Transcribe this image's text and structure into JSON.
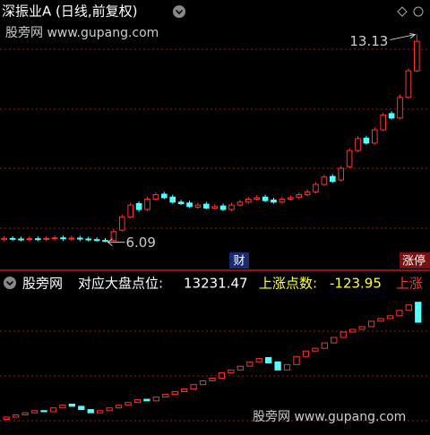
{
  "chart_data": [
    {
      "type": "candlestick",
      "title": "深振业A (日线,前复权)",
      "up_color": "#ff3232",
      "down_color": "#54ffff",
      "ylim": [
        5.2,
        14.3
      ],
      "open": [
        6.18,
        6.22,
        6.2,
        6.18,
        6.21,
        6.19,
        6.22,
        6.24,
        6.21,
        6.23,
        6.2,
        6.18,
        6.15,
        6.15,
        6.5,
        6.95,
        7.4,
        7.2,
        7.55,
        7.72,
        7.62,
        7.45,
        7.42,
        7.28,
        7.38,
        7.25,
        7.32,
        7.2,
        7.35,
        7.45,
        7.55,
        7.62,
        7.52,
        7.45,
        7.55,
        7.62,
        7.7,
        7.8,
        8.05,
        8.32,
        8.2,
        8.65,
        9.2,
        9.62,
        9.45,
        9.9,
        10.45,
        10.3,
        11.0,
        11.9
      ],
      "high": [
        6.3,
        6.3,
        6.28,
        6.29,
        6.29,
        6.3,
        6.32,
        6.32,
        6.31,
        6.31,
        6.28,
        6.26,
        6.23,
        6.53,
        7.03,
        7.43,
        7.48,
        7.63,
        7.78,
        7.8,
        7.7,
        7.53,
        7.5,
        7.43,
        7.46,
        7.38,
        7.4,
        7.43,
        7.53,
        7.63,
        7.68,
        7.7,
        7.6,
        7.63,
        7.68,
        7.78,
        7.88,
        8.13,
        8.38,
        8.4,
        8.68,
        9.28,
        9.68,
        9.7,
        9.98,
        10.48,
        10.53,
        11.08,
        11.98,
        13.13
      ],
      "low": [
        6.12,
        6.13,
        6.12,
        6.12,
        6.13,
        6.13,
        6.15,
        6.14,
        6.14,
        6.13,
        6.12,
        6.11,
        6.09,
        6.12,
        6.45,
        6.9,
        7.12,
        7.15,
        7.5,
        7.55,
        7.4,
        7.35,
        7.25,
        7.22,
        7.2,
        7.2,
        7.15,
        7.15,
        7.3,
        7.4,
        7.5,
        7.45,
        7.4,
        7.4,
        7.5,
        7.55,
        7.65,
        7.75,
        8.0,
        8.1,
        8.15,
        8.6,
        9.15,
        9.4,
        9.4,
        9.85,
        10.25,
        10.25,
        10.95,
        11.85
      ],
      "close": [
        6.22,
        6.2,
        6.18,
        6.21,
        6.19,
        6.22,
        6.24,
        6.21,
        6.23,
        6.2,
        6.18,
        6.15,
        6.12,
        6.45,
        6.95,
        7.35,
        7.2,
        7.55,
        7.7,
        7.6,
        7.45,
        7.4,
        7.3,
        7.35,
        7.25,
        7.3,
        7.2,
        7.35,
        7.45,
        7.55,
        7.6,
        7.5,
        7.45,
        7.55,
        7.6,
        7.7,
        7.8,
        8.05,
        8.3,
        8.15,
        8.6,
        9.2,
        9.6,
        9.45,
        9.9,
        10.4,
        10.3,
        11.0,
        11.9,
        12.9
      ]
    },
    {
      "type": "candlestick",
      "indicator": "股旁网",
      "label": "对应大盘点位:",
      "change_label": "上涨点数:",
      "change": -123.95,
      "extra_label": "上涨",
      "up_color": "#ff3232",
      "down_color": "#54ffff",
      "ylim": [
        11150,
        14190
      ],
      "open": [
        11440,
        11480,
        11520,
        11560,
        11600,
        11580,
        11650,
        11720,
        11680,
        11620,
        11560,
        11600,
        11650,
        11700,
        11750,
        11810,
        11780,
        11850,
        11900,
        11950,
        12000,
        12080,
        12150,
        12200,
        12300,
        12350,
        12420,
        12500,
        12580,
        12500,
        12350,
        12450,
        12600,
        12700,
        12750,
        12850,
        12950,
        13050,
        13100,
        13150,
        13250,
        13300,
        13350,
        13450,
        13600
      ],
      "close": [
        11480,
        11520,
        11560,
        11600,
        11580,
        11650,
        11700,
        11680,
        11620,
        11560,
        11600,
        11650,
        11700,
        11750,
        11800,
        11780,
        11850,
        11900,
        11950,
        12000,
        12080,
        12150,
        12200,
        12300,
        12350,
        12420,
        12500,
        12560,
        12480,
        12350,
        12450,
        12600,
        12700,
        12750,
        12850,
        12950,
        13050,
        13100,
        13150,
        13250,
        13300,
        13350,
        13450,
        13550,
        13231.47
      ]
    }
  ],
  "watermark": "股旁网 www.gupang.com",
  "badges": [
    "财",
    "涨停"
  ]
}
